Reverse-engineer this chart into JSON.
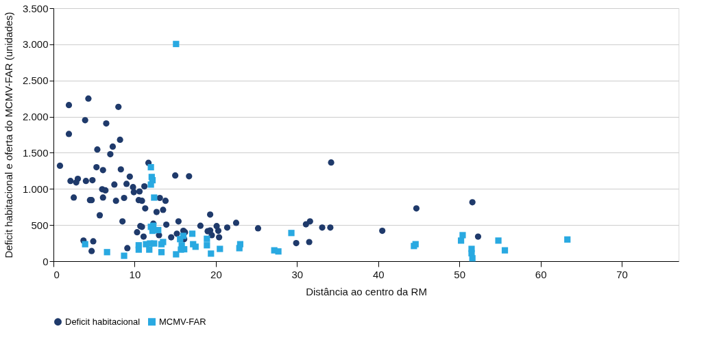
{
  "chart_data": {
    "type": "scatter",
    "xlabel": "Distância ao centro da RM",
    "ylabel": "Deficit habitacional e oferta do MCMV-FAR (unidades)",
    "xlim": [
      0,
      77
    ],
    "xticks": [
      0,
      10,
      20,
      30,
      40,
      50,
      60,
      70
    ],
    "ylim": [
      0,
      3500
    ],
    "yticks": [
      {
        "value": 0,
        "label": "0"
      },
      {
        "value": 500,
        "label": "500"
      },
      {
        "value": 1000,
        "label": "1.000"
      },
      {
        "value": 1500,
        "label": "1.500"
      },
      {
        "value": 2000,
        "label": "2.000"
      },
      {
        "value": 2500,
        "label": "2.500"
      },
      {
        "value": 3000,
        "label": "3.000"
      },
      {
        "value": 3500,
        "label": "3.500"
      }
    ],
    "grid": "y",
    "legend": "bottom",
    "series": [
      {
        "name": "Deficit habitacional",
        "color": "#1f3a6b",
        "marker": "circle",
        "x": [
          0.8,
          1.9,
          1.9,
          2.1,
          2.5,
          2.8,
          3.0,
          3.7,
          3.9,
          4.0,
          4.3,
          4.5,
          4.7,
          4.8,
          4.7,
          4.9,
          5.4,
          5.3,
          5.7,
          6.0,
          6.1,
          6.1,
          6.4,
          6.5,
          7.0,
          7.3,
          7.5,
          7.7,
          8.0,
          8.2,
          8.3,
          8.5,
          8.7,
          9.0,
          9.1,
          9.4,
          9.8,
          9.9,
          10.6,
          11.2,
          10.5,
          10.9,
          11.3,
          12.7,
          13.5,
          13.1,
          13.8,
          15.0,
          16.7,
          11.7,
          10.7,
          10.9,
          12.3,
          13.9,
          15.4,
          10.3,
          11.1,
          13.0,
          14.5,
          15.2,
          16.0,
          16.2,
          18.1,
          19.3,
          19.0,
          19.3,
          19.5,
          20.1,
          20.3,
          20.4,
          21.4,
          22.5,
          16.1,
          25.2,
          29.9,
          31.1,
          31.6,
          31.5,
          33.1,
          34.1,
          34.2,
          40.5,
          44.7,
          51.6,
          52.3
        ],
        "values": [
          1320,
          2160,
          1760,
          1110,
          880,
          1090,
          1140,
          285,
          1950,
          1110,
          2250,
          845,
          845,
          1120,
          140,
          275,
          1545,
          1300,
          635,
          995,
          880,
          1260,
          980,
          1905,
          1480,
          1585,
          1060,
          835,
          2135,
          1680,
          1270,
          550,
          875,
          1070,
          180,
          1170,
          1025,
          955,
          965,
          1035,
          845,
          835,
          730,
          680,
          710,
          875,
          835,
          1185,
          1175,
          1360,
          485,
          475,
          520,
          505,
          550,
          400,
          340,
          360,
          330,
          380,
          420,
          400,
          490,
          645,
          415,
          425,
          360,
          485,
          420,
          330,
          465,
          530,
          305,
          455,
          250,
          510,
          550,
          265,
          465,
          465,
          1365,
          420,
          730,
          815,
          340
        ]
      },
      {
        "name": "MCMV-FAR",
        "color": "#29a9e1",
        "marker": "square",
        "x": [
          15.1,
          3.9,
          6.6,
          8.7,
          12.0,
          12.1,
          12.2,
          12.0,
          12.4,
          12.0,
          12.3,
          12.2,
          12.9,
          10.5,
          10.5,
          11.4,
          11.8,
          11.9,
          12.4,
          13.3,
          13.5,
          13.3,
          15.1,
          15.6,
          16.0,
          15.8,
          15.7,
          16.1,
          17.1,
          17.2,
          17.5,
          18.9,
          18.9,
          19.4,
          20.5,
          22.9,
          23.0,
          29.3,
          27.2,
          27.7,
          44.4,
          44.6,
          50.2,
          50.4,
          51.5,
          51.5,
          51.6,
          54.8,
          55.6,
          63.3
        ],
        "values": [
          3005,
          235,
          125,
          75,
          1300,
          1165,
          1120,
          1060,
          880,
          475,
          490,
          420,
          430,
          220,
          160,
          235,
          160,
          245,
          245,
          235,
          265,
          125,
          95,
          305,
          350,
          220,
          160,
          165,
          380,
          235,
          200,
          310,
          220,
          105,
          170,
          180,
          235,
          390,
          150,
          135,
          210,
          235,
          285,
          360,
          170,
          110,
          40,
          285,
          150,
          300
        ]
      }
    ]
  }
}
